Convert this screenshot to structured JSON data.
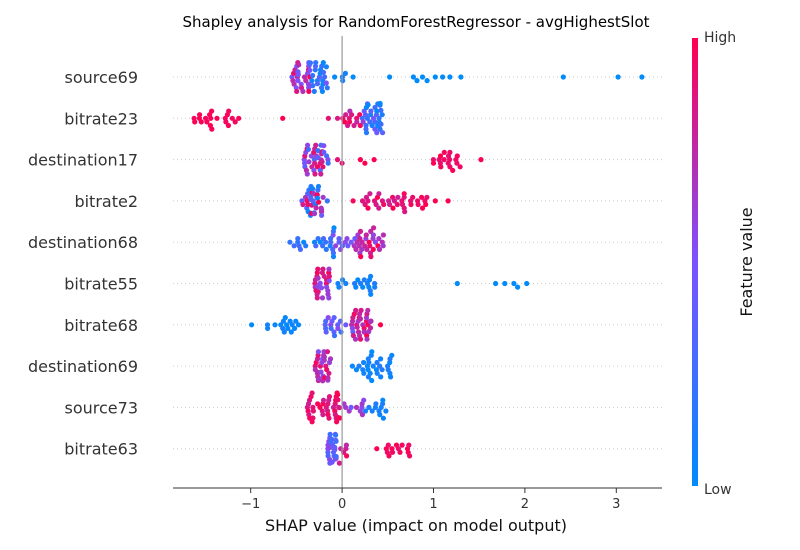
{
  "chart_data": {
    "type": "scatter",
    "title": "Shapley analysis for RandomForestRegressor - avgHighestSlot",
    "xlabel": "SHAP value (impact on model output)",
    "xlim": [
      -1.85,
      3.5
    ],
    "xticks": [
      -1,
      0,
      1,
      2,
      3
    ],
    "xtick_labels": [
      "−1",
      "0",
      "1",
      "2",
      "3"
    ],
    "colorbar": {
      "label": "Feature value",
      "high_label": "High",
      "low_label": "Low"
    },
    "colors": {
      "low": "#008bfb",
      "high": "#ff0051"
    },
    "features": [
      {
        "name": "source69",
        "points": [
          {
            "range": [
              -0.55,
              -0.35
            ],
            "n": 30,
            "c": [
              0.4,
              1.0
            ]
          },
          {
            "range": [
              -0.35,
              -0.15
            ],
            "n": 24,
            "c": [
              0.0,
              0.5
            ]
          },
          {
            "range": [
              -0.15,
              0.05
            ],
            "n": 4,
            "c": [
              0.0,
              0.1
            ]
          },
          {
            "x": 0.12,
            "c": 0.0
          },
          {
            "x": 0.52,
            "c": 0.0
          },
          {
            "x": 0.78,
            "c": 0.0
          },
          {
            "x": 0.82,
            "c": 0.0
          },
          {
            "x": 0.88,
            "c": 0.0
          },
          {
            "x": 0.93,
            "c": 0.0
          },
          {
            "x": 1.02,
            "c": 0.0
          },
          {
            "x": 1.1,
            "c": 0.0
          },
          {
            "x": 1.18,
            "c": 0.0
          },
          {
            "x": 1.3,
            "c": 0.0
          },
          {
            "x": 2.42,
            "c": 0.0
          },
          {
            "x": 3.02,
            "c": 0.0
          },
          {
            "x": 3.28,
            "c": 0.0
          }
        ]
      },
      {
        "name": "bitrate23",
        "points": [
          {
            "range": [
              -1.62,
              -1.35
            ],
            "n": 13,
            "c": [
              0.95,
              1.0
            ]
          },
          {
            "range": [
              -1.3,
              -1.12
            ],
            "n": 8,
            "c": [
              0.95,
              1.0
            ]
          },
          {
            "x": -0.65,
            "c": 1.0
          },
          {
            "x": -0.15,
            "c": 0.9
          },
          {
            "x": -0.05,
            "c": 0.85
          },
          {
            "range": [
              0.0,
              0.25
            ],
            "n": 14,
            "c": [
              0.6,
              1.0
            ]
          },
          {
            "range": [
              0.22,
              0.45
            ],
            "n": 32,
            "c": [
              0.0,
              0.5
            ]
          }
        ]
      },
      {
        "name": "destination17",
        "points": [
          {
            "range": [
              -0.42,
              -0.15
            ],
            "n": 38,
            "c": [
              0.2,
              1.0
            ]
          },
          {
            "x": -0.05,
            "c": 0.9
          },
          {
            "x": 0.0,
            "c": 0.9
          },
          {
            "x": 0.2,
            "c": 1.0
          },
          {
            "x": 0.25,
            "c": 1.0
          },
          {
            "x": 0.35,
            "c": 1.0
          },
          {
            "range": [
              0.98,
              1.3
            ],
            "n": 18,
            "c": [
              0.9,
              1.0
            ]
          },
          {
            "x": 1.52,
            "c": 1.0
          }
        ]
      },
      {
        "name": "bitrate2",
        "points": [
          {
            "range": [
              -0.45,
              -0.15
            ],
            "n": 36,
            "c": [
              0.0,
              1.0
            ]
          },
          {
            "x": 0.12,
            "c": 0.95
          },
          {
            "range": [
              0.2,
              0.7
            ],
            "n": 26,
            "c": [
              0.8,
              1.0
            ]
          },
          {
            "range": [
              0.7,
              0.95
            ],
            "n": 10,
            "c": [
              0.9,
              1.0
            ]
          },
          {
            "x": 1.02,
            "c": 1.0
          },
          {
            "x": 1.16,
            "c": 1.0
          }
        ]
      },
      {
        "name": "destination68",
        "points": [
          {
            "range": [
              -0.62,
              -0.05
            ],
            "n": 24,
            "c": [
              0.0,
              0.3
            ]
          },
          {
            "range": [
              -0.1,
              0.15
            ],
            "n": 12,
            "c": [
              0.3,
              0.7
            ]
          },
          {
            "range": [
              0.15,
              0.48
            ],
            "n": 30,
            "c": [
              0.55,
              1.0
            ]
          }
        ]
      },
      {
        "name": "bitrate55",
        "points": [
          {
            "range": [
              -0.3,
              -0.12
            ],
            "n": 28,
            "c": [
              0.5,
              1.0
            ]
          },
          {
            "range": [
              -0.05,
              0.38
            ],
            "n": 18,
            "c": [
              0.0,
              0.15
            ]
          },
          {
            "x": 1.26,
            "c": 0.0
          },
          {
            "x": 1.68,
            "c": 0.0
          },
          {
            "x": 1.78,
            "c": 0.0
          },
          {
            "x": 1.88,
            "c": 0.0
          },
          {
            "x": 1.92,
            "c": 0.0
          },
          {
            "x": 2.02,
            "c": 0.0
          }
        ]
      },
      {
        "name": "bitrate68",
        "points": [
          {
            "x": -0.99,
            "c": 0.0
          },
          {
            "range": [
              -0.82,
              -0.45
            ],
            "n": 16,
            "c": [
              0.0,
              0.1
            ]
          },
          {
            "range": [
              -0.2,
              0.12
            ],
            "n": 18,
            "c": [
              0.2,
              0.6
            ]
          },
          {
            "range": [
              0.1,
              0.32
            ],
            "n": 32,
            "c": [
              0.6,
              1.0
            ]
          },
          {
            "x": 0.42,
            "c": 1.0
          }
        ]
      },
      {
        "name": "destination69",
        "points": [
          {
            "range": [
              -0.3,
              -0.12
            ],
            "n": 30,
            "c": [
              0.5,
              1.0
            ]
          },
          {
            "range": [
              0.1,
              0.55
            ],
            "n": 30,
            "c": [
              0.0,
              0.15
            ]
          }
        ]
      },
      {
        "name": "source73",
        "points": [
          {
            "range": [
              -0.38,
              -0.02
            ],
            "n": 40,
            "c": [
              0.8,
              1.0
            ]
          },
          {
            "range": [
              0.0,
              0.25
            ],
            "n": 10,
            "c": [
              0.45,
              0.75
            ]
          },
          {
            "range": [
              0.25,
              0.48
            ],
            "n": 12,
            "c": [
              0.0,
              0.15
            ]
          }
        ]
      },
      {
        "name": "bitrate63",
        "points": [
          {
            "range": [
              -0.16,
              -0.06
            ],
            "n": 26,
            "c": [
              0.15,
              0.6
            ]
          },
          {
            "range": [
              -0.05,
              0.05
            ],
            "n": 6,
            "c": [
              0.75,
              1.0
            ]
          },
          {
            "x": 0.38,
            "c": 1.0
          },
          {
            "range": [
              0.48,
              0.82
            ],
            "n": 14,
            "c": [
              0.9,
              1.0
            ]
          }
        ]
      }
    ]
  }
}
